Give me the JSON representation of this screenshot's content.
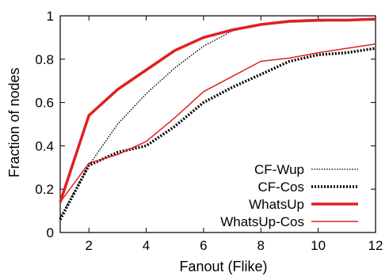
{
  "chart_data": {
    "type": "line",
    "title": "",
    "xlabel": "Fanout (Flike)",
    "ylabel": "Fraction of nodes",
    "xlim": [
      1,
      12
    ],
    "ylim": [
      0,
      1
    ],
    "xticks": [
      2,
      4,
      6,
      8,
      10,
      12
    ],
    "yticks": [
      0,
      0.2,
      0.4,
      0.6,
      0.8,
      1
    ],
    "xtick_labels": [
      "2",
      "4",
      "6",
      "8",
      "10",
      "12"
    ],
    "ytick_labels": [
      "0",
      "0.2",
      "0.4",
      "0.6",
      "0.8",
      "1"
    ],
    "grid": false,
    "legend_position": "bottom-right",
    "series": [
      {
        "name": "CF-Wup",
        "color": "#000000",
        "style": "dotted-thin",
        "x": [
          1,
          2,
          3,
          4,
          5,
          6,
          7,
          8,
          9,
          10,
          11,
          12
        ],
        "y": [
          0.07,
          0.31,
          0.5,
          0.64,
          0.76,
          0.86,
          0.93,
          0.96,
          0.97,
          0.975,
          0.98,
          0.98
        ]
      },
      {
        "name": "CF-Cos",
        "color": "#000000",
        "style": "dotted-thick",
        "x": [
          1,
          2,
          3,
          4,
          5,
          6,
          7,
          8,
          9,
          10,
          11,
          12
        ],
        "y": [
          0.06,
          0.31,
          0.37,
          0.4,
          0.49,
          0.6,
          0.67,
          0.73,
          0.79,
          0.82,
          0.83,
          0.85
        ]
      },
      {
        "name": "WhatsUp",
        "color": "#e02020",
        "style": "solid-thick",
        "x": [
          1,
          2,
          3,
          4,
          5,
          6,
          7,
          8,
          9,
          10,
          11,
          12
        ],
        "y": [
          0.14,
          0.54,
          0.66,
          0.75,
          0.84,
          0.9,
          0.935,
          0.96,
          0.975,
          0.98,
          0.98,
          0.985
        ]
      },
      {
        "name": "WhatsUp-Cos",
        "color": "#e02020",
        "style": "solid-thin",
        "x": [
          1,
          2,
          3,
          4,
          5,
          6,
          7,
          8,
          9,
          10,
          11,
          12
        ],
        "y": [
          0.14,
          0.32,
          0.36,
          0.42,
          0.53,
          0.65,
          0.72,
          0.79,
          0.805,
          0.83,
          0.85,
          0.87
        ]
      }
    ]
  }
}
